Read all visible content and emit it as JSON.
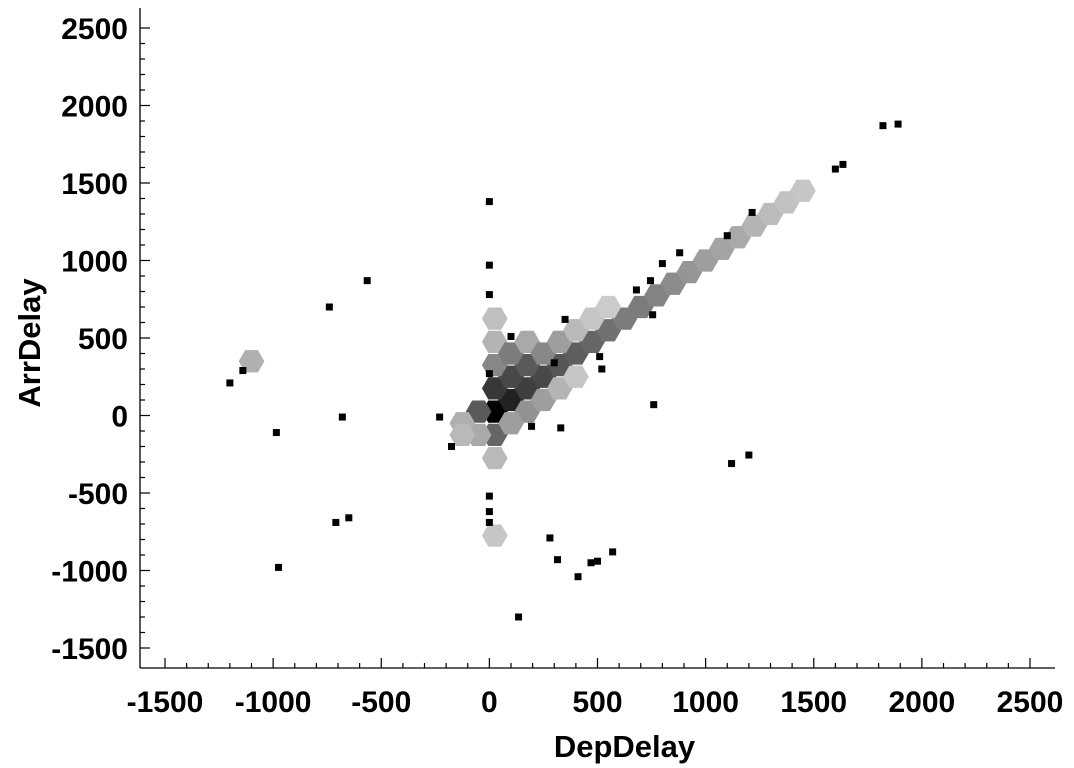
{
  "chart_data": {
    "type": "heatmap",
    "subtype": "hexbin-with-outlier-points",
    "xlabel": "DepDelay",
    "ylabel": "ArrDelay",
    "xlim": [
      -1500,
      2500
    ],
    "ylim": [
      -1500,
      2500
    ],
    "xticks": [
      -1500,
      -1000,
      -500,
      0,
      500,
      1000,
      1500,
      2000,
      2500
    ],
    "yticks": [
      -1500,
      -1000,
      -500,
      0,
      500,
      1000,
      1500,
      2000,
      2500
    ],
    "xtick_labels": [
      "-1500",
      "-1000",
      "-500",
      "0",
      "500",
      "1000",
      "1500",
      "2000",
      "2500"
    ],
    "ytick_labels": [
      "-1500",
      "-1000",
      "-500",
      "0",
      "500",
      "1000",
      "1500",
      "2000",
      "2500"
    ],
    "minor_tick_step": 100,
    "grid": false,
    "legend": "none",
    "colormap": "grayscale (light = low density, black = high density)",
    "hexbins": [
      {
        "x": 25,
        "y": 25,
        "density": 1.0
      },
      {
        "x": 100,
        "y": 100,
        "density": 0.85
      },
      {
        "x": 25,
        "y": 175,
        "density": 0.75
      },
      {
        "x": 175,
        "y": 175,
        "density": 0.72
      },
      {
        "x": 100,
        "y": 250,
        "density": 0.68
      },
      {
        "x": 250,
        "y": 250,
        "density": 0.68
      },
      {
        "x": 175,
        "y": 325,
        "density": 0.6
      },
      {
        "x": 325,
        "y": 325,
        "density": 0.62
      },
      {
        "x": -50,
        "y": 25,
        "density": 0.6
      },
      {
        "x": 25,
        "y": -125,
        "density": 0.55
      },
      {
        "x": 400,
        "y": 400,
        "density": 0.58
      },
      {
        "x": 475,
        "y": 475,
        "density": 0.55
      },
      {
        "x": 550,
        "y": 550,
        "density": 0.5
      },
      {
        "x": 625,
        "y": 625,
        "density": 0.45
      },
      {
        "x": 700,
        "y": 700,
        "density": 0.45
      },
      {
        "x": 775,
        "y": 775,
        "density": 0.42
      },
      {
        "x": 850,
        "y": 850,
        "density": 0.38
      },
      {
        "x": 925,
        "y": 925,
        "density": 0.34
      },
      {
        "x": 1000,
        "y": 1000,
        "density": 0.3
      },
      {
        "x": 1075,
        "y": 1075,
        "density": 0.27
      },
      {
        "x": 1150,
        "y": 1150,
        "density": 0.25
      },
      {
        "x": 1225,
        "y": 1225,
        "density": 0.2
      },
      {
        "x": 1300,
        "y": 1300,
        "density": 0.17
      },
      {
        "x": 1375,
        "y": 1375,
        "density": 0.14
      },
      {
        "x": 1450,
        "y": 1450,
        "density": 0.12
      },
      {
        "x": 25,
        "y": 325,
        "density": 0.4
      },
      {
        "x": 25,
        "y": 475,
        "density": 0.2
      },
      {
        "x": 25,
        "y": 625,
        "density": 0.15
      },
      {
        "x": 100,
        "y": 400,
        "density": 0.45
      },
      {
        "x": 175,
        "y": 475,
        "density": 0.25
      },
      {
        "x": 250,
        "y": 400,
        "density": 0.4
      },
      {
        "x": 325,
        "y": 475,
        "density": 0.3
      },
      {
        "x": 400,
        "y": 550,
        "density": 0.18
      },
      {
        "x": 475,
        "y": 625,
        "density": 0.12
      },
      {
        "x": 550,
        "y": 700,
        "density": 0.1
      },
      {
        "x": 175,
        "y": 25,
        "density": 0.35
      },
      {
        "x": 250,
        "y": 100,
        "density": 0.3
      },
      {
        "x": 325,
        "y": 175,
        "density": 0.2
      },
      {
        "x": 400,
        "y": 250,
        "density": 0.12
      },
      {
        "x": 100,
        "y": -50,
        "density": 0.3
      },
      {
        "x": -50,
        "y": -125,
        "density": 0.25
      },
      {
        "x": -125,
        "y": -50,
        "density": 0.22
      },
      {
        "x": -125,
        "y": -125,
        "density": 0.18
      },
      {
        "x": 25,
        "y": -275,
        "density": 0.18
      },
      {
        "x": 25,
        "y": -775,
        "density": 0.12
      },
      {
        "x": -1100,
        "y": 350,
        "density": 0.22
      }
    ],
    "points": [
      [
        -1200,
        210
      ],
      [
        -1140,
        290
      ],
      [
        -985,
        -110
      ],
      [
        -975,
        -980
      ],
      [
        -740,
        700
      ],
      [
        -710,
        -690
      ],
      [
        -680,
        -10
      ],
      [
        -650,
        -660
      ],
      [
        -565,
        870
      ],
      [
        -230,
        -10
      ],
      [
        -175,
        -200
      ],
      [
        0,
        1380
      ],
      [
        0,
        970
      ],
      [
        0,
        780
      ],
      [
        0,
        270
      ],
      [
        0,
        -520
      ],
      [
        0,
        -620
      ],
      [
        0,
        -690
      ],
      [
        100,
        510
      ],
      [
        135,
        -1300
      ],
      [
        195,
        -70
      ],
      [
        280,
        -790
      ],
      [
        300,
        340
      ],
      [
        315,
        -930
      ],
      [
        330,
        -80
      ],
      [
        350,
        620
      ],
      [
        410,
        -1040
      ],
      [
        470,
        -950
      ],
      [
        500,
        -940
      ],
      [
        510,
        380
      ],
      [
        520,
        300
      ],
      [
        570,
        -880
      ],
      [
        680,
        810
      ],
      [
        745,
        870
      ],
      [
        755,
        650
      ],
      [
        760,
        70
      ],
      [
        800,
        980
      ],
      [
        880,
        1050
      ],
      [
        1100,
        1160
      ],
      [
        1120,
        -310
      ],
      [
        1200,
        -255
      ],
      [
        1215,
        1310
      ],
      [
        1600,
        1590
      ],
      [
        1635,
        1620
      ],
      [
        1820,
        1870
      ],
      [
        1890,
        1880
      ]
    ]
  }
}
